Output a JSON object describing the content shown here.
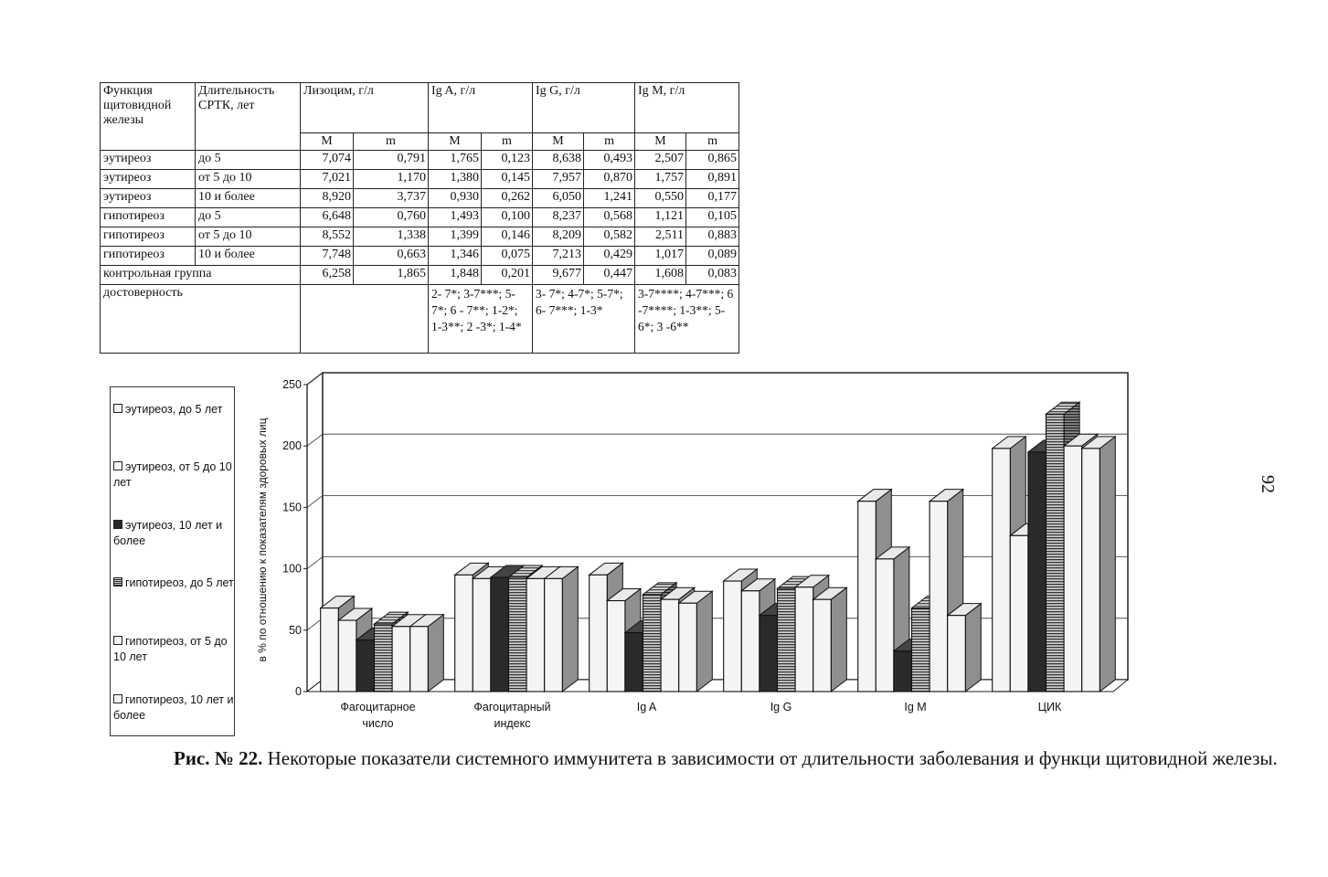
{
  "page_number": "92",
  "table": {
    "header": {
      "function_col": "Функция щитовидной железы",
      "duration_col": "Длительность СРТК, лет",
      "groups": [
        "Лизоцим, г/л",
        "Ig A, г/л",
        "Ig G, г/л",
        "Ig M, г/л"
      ],
      "sub_m_upper": "M",
      "sub_m_lower": "m"
    },
    "rows": [
      {
        "func": "эутиреоз",
        "dur": "до 5",
        "vals": [
          "7,074",
          "0,791",
          "1,765",
          "0,123",
          "8,638",
          "0,493",
          "2,507",
          "0,865"
        ]
      },
      {
        "func": "эутиреоз",
        "dur": "от 5 до 10",
        "vals": [
          "7,021",
          "1,170",
          "1,380",
          "0,145",
          "7,957",
          "0,870",
          "1,757",
          "0,891"
        ]
      },
      {
        "func": "эутиреоз",
        "dur": "10 и более",
        "vals": [
          "8,920",
          "3,737",
          "0,930",
          "0,262",
          "6,050",
          "1,241",
          "0,550",
          "0,177"
        ]
      },
      {
        "func": "гипотиреоз",
        "dur": "до 5",
        "vals": [
          "6,648",
          "0,760",
          "1,493",
          "0,100",
          "8,237",
          "0,568",
          "1,121",
          "0,105"
        ]
      },
      {
        "func": "гипотиреоз",
        "dur": "от 5 до 10",
        "vals": [
          "8,552",
          "1,338",
          "1,399",
          "0,146",
          "8,209",
          "0,582",
          "2,511",
          "0,883"
        ]
      },
      {
        "func": "гипотиреоз",
        "dur": "10 и более",
        "vals": [
          "7,748",
          "0,663",
          "1,346",
          "0,075",
          "7,213",
          "0,429",
          "1,017",
          "0,089"
        ]
      }
    ],
    "control": {
      "label": "контрольная группа",
      "vals": [
        "6,258",
        "1,865",
        "1,848",
        "0,201",
        "9,677",
        "0,447",
        "1,608",
        "0,083"
      ]
    },
    "significance": {
      "label": "достоверность",
      "lysozyme": "",
      "iga": "2- 7*; 3-7***; 5-7*; 6 - 7**; 1-2*; 1-3**; 2 -3*; 1-4*",
      "igg": "3- 7*; 4-7*; 5-7*; 6- 7***; 1-3*",
      "igm": "3-7****; 4-7***; 6 -7****; 1-3**; 5-6*; 3 -6**"
    }
  },
  "legend_items": [
    {
      "label": "эутиреоз, до 5 лет",
      "style": "white"
    },
    {
      "label": "эутиреоз, от 5 до 10 лет",
      "style": "white"
    },
    {
      "label": "эутиреоз, 10 лет и более",
      "style": "black"
    },
    {
      "label": "гипотиреоз, до 5 лет",
      "style": "hatched"
    },
    {
      "label": "гипотиреоз, от 5 до 10 лет",
      "style": "white"
    },
    {
      "label": "гипотиреоз, 10 лет и более",
      "style": "white"
    }
  ],
  "chart_data": {
    "type": "bar",
    "title": "",
    "xlabel": "",
    "ylabel": "в % по отношению к показателям здоровых лиц",
    "ylim": [
      0,
      250
    ],
    "yticks": [
      0,
      50,
      100,
      150,
      200,
      250
    ],
    "grid": true,
    "legend_position": "left",
    "categories": [
      "Фагоцитарное число",
      "Фагоцитарный индекс",
      "Ig A",
      "Ig G",
      "Ig M",
      "ЦИК"
    ],
    "series": [
      {
        "name": "эутиреоз, до 5 лет",
        "values": [
          68,
          95,
          95,
          90,
          155,
          198
        ]
      },
      {
        "name": "эутиреоз, от 5 до 10 лет",
        "values": [
          58,
          92,
          74,
          82,
          108,
          127
        ]
      },
      {
        "name": "эутиреоз, 10 лет и более",
        "values": [
          42,
          93,
          48,
          62,
          33,
          195
        ]
      },
      {
        "name": "гипотиреоз, до 5 лет",
        "values": [
          55,
          93,
          79,
          84,
          68,
          226
        ]
      },
      {
        "name": "гипотиреоз, от 5 до 10 лет",
        "values": [
          53,
          92,
          75,
          85,
          155,
          200
        ]
      },
      {
        "name": "гипотиреоз, 10 лет и более",
        "values": [
          53,
          92,
          72,
          75,
          62,
          198
        ]
      }
    ],
    "colors": {
      "white": "#f4f4f4",
      "side": "#8f8f8f",
      "black": "#2a2a2a",
      "hatch_dark": "#3a3a3a",
      "hatch_light": "#c8c8c8"
    }
  },
  "caption": {
    "label": "Рис. № 22.",
    "text": " Некоторые показатели системного иммунитета в зависимости от длительности заболевания и функци щитовидной железы."
  }
}
